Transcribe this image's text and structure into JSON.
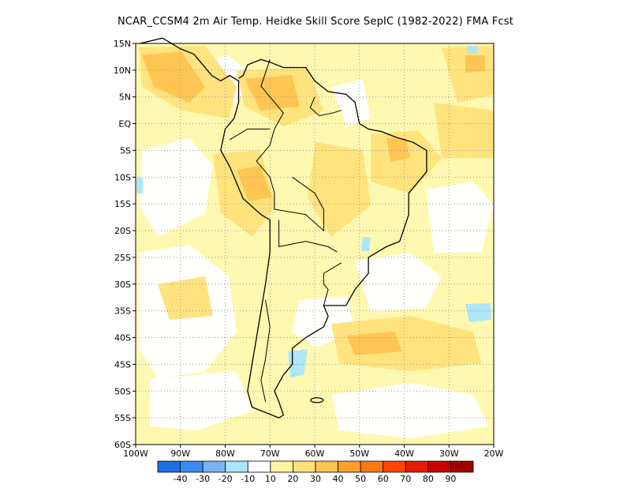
{
  "title": "NCAR_CCSM4  2m Air Temp. Heidke Skill Score SepIC (1982-2022) FMA Fcst",
  "map": {
    "lon_range": [
      -100,
      -20
    ],
    "lat_range": [
      -60,
      15
    ],
    "grid": "dotted",
    "lat_tick_labels": [
      "15N",
      "10N",
      "5N",
      "EQ",
      "5S",
      "10S",
      "15S",
      "20S",
      "25S",
      "30S",
      "35S",
      "40S",
      "45S",
      "50S",
      "55S",
      "60S"
    ],
    "lat_tick_values": [
      15,
      10,
      5,
      0,
      -5,
      -10,
      -15,
      -20,
      -25,
      -30,
      -35,
      -40,
      -45,
      -50,
      -55,
      -60
    ],
    "lon_tick_labels": [
      "100W",
      "90W",
      "80W",
      "70W",
      "60W",
      "50W",
      "40W",
      "30W",
      "20W"
    ],
    "lon_tick_values": [
      -100,
      -90,
      -80,
      -70,
      -60,
      -50,
      -40,
      -30,
      -20
    ],
    "background_color": "#FFF8B0"
  },
  "colorbar": {
    "colors": [
      "#1E6EE6",
      "#3C8CF0",
      "#78B4F5",
      "#AAE6FA",
      "#FFFFFF",
      "#FFF5A0",
      "#FFE17A",
      "#FFC350",
      "#FFA028",
      "#FF7814",
      "#FF4600",
      "#E61E00",
      "#C80000",
      "#A00000"
    ],
    "labels": [
      "-40",
      "-30",
      "-20",
      "-10",
      "10",
      "20",
      "30",
      "40",
      "50",
      "60",
      "70",
      "80",
      "90"
    ]
  }
}
